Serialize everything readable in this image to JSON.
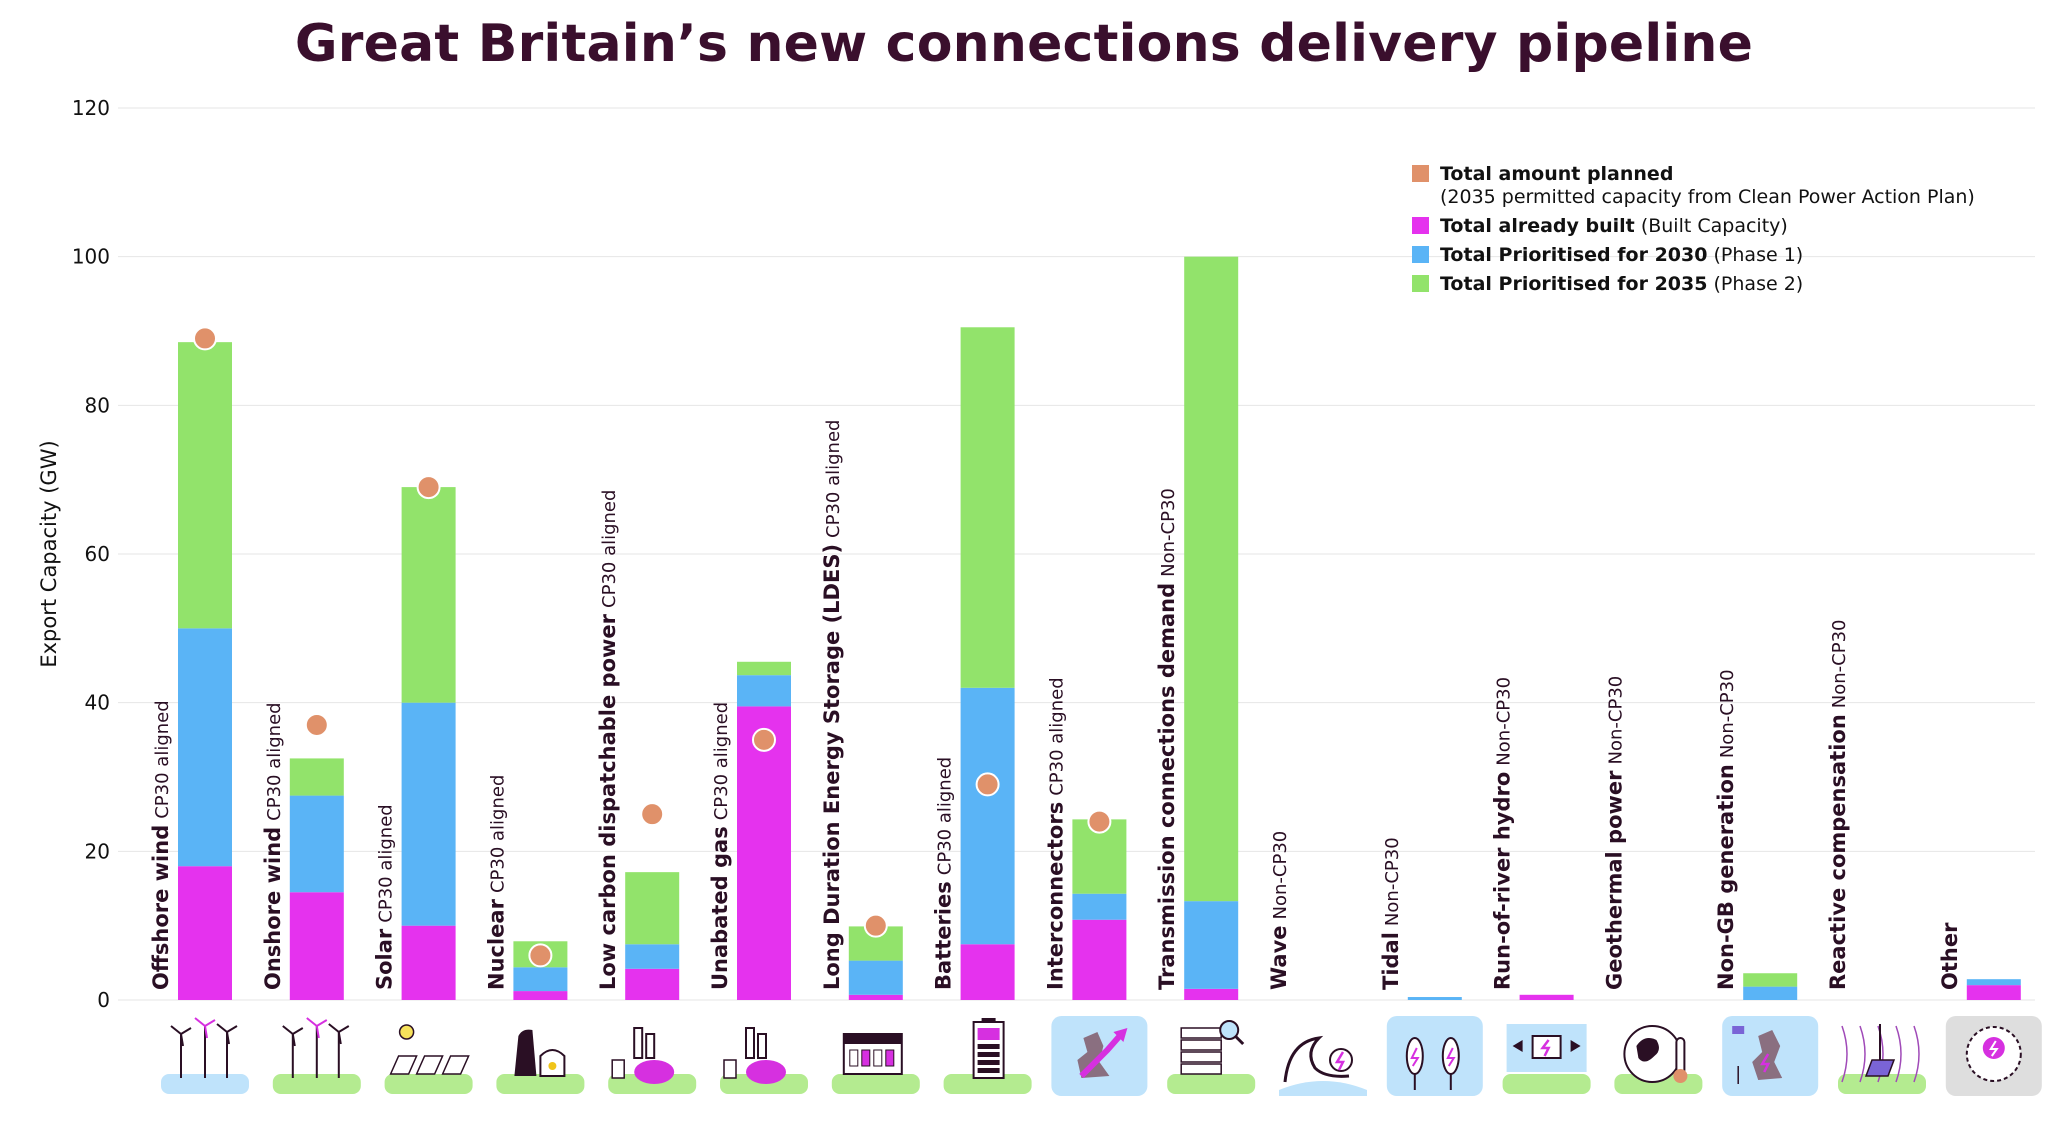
{
  "chart_data": {
    "type": "bar",
    "title": "Great Britain’s new connections delivery pipeline",
    "ylabel": "Export Capacity (GW)",
    "xlabel": "",
    "ylim": [
      0,
      120
    ],
    "yticks": [
      0,
      20,
      40,
      60,
      80,
      100,
      120
    ],
    "grid": true,
    "legend_position": "top-right",
    "categories": [
      {
        "name": "Offshore wind",
        "note": "CP30 aligned",
        "icon": "offshore-wind-turbines-icon"
      },
      {
        "name": "Onshore wind",
        "note": "CP30 aligned",
        "icon": "onshore-wind-turbines-icon"
      },
      {
        "name": "Solar",
        "note": "CP30 aligned",
        "icon": "solar-panels-icon"
      },
      {
        "name": "Nuclear",
        "note": "CP30 aligned",
        "icon": "nuclear-plant-icon"
      },
      {
        "name": "Low carbon dispatchable power",
        "note": "CP30 aligned",
        "icon": "hydrogen-plant-icon"
      },
      {
        "name": "Unabated gas",
        "note": "CP30 aligned",
        "icon": "gas-plant-icon"
      },
      {
        "name": "Long Duration Energy Storage (LDES)",
        "note": "CP30 aligned",
        "icon": "energy-storage-icon"
      },
      {
        "name": "Batteries",
        "note": "CP30 aligned",
        "icon": "battery-icon"
      },
      {
        "name": "Interconnectors",
        "note": "CP30 aligned",
        "icon": "interconnector-map-icon"
      },
      {
        "name": "Transmission connections demand",
        "note": "Non-CP30",
        "icon": "data-centre-server-icon"
      },
      {
        "name": "Wave",
        "note": "Non-CP30",
        "icon": "wave-energy-icon"
      },
      {
        "name": "Tidal",
        "note": "Non-CP30",
        "icon": "tidal-turbine-icon"
      },
      {
        "name": "Run-of-river hydro",
        "note": "Non-CP30",
        "icon": "hydro-turbine-icon"
      },
      {
        "name": "Geothermal power",
        "note": "Non-CP30",
        "icon": "geothermal-globe-icon"
      },
      {
        "name": "Non-GB generation",
        "note": "Non-CP30",
        "icon": "non-gb-map-icon"
      },
      {
        "name": "Reactive compensation",
        "note": "Non-CP30",
        "icon": "reactive-compensation-icon"
      },
      {
        "name": "Other",
        "note": "",
        "icon": "other-energy-icon"
      }
    ],
    "series": [
      {
        "name": "Total already built",
        "color": "#e532ee",
        "values": [
          18,
          14.5,
          10,
          1.2,
          4.2,
          39.5,
          0.7,
          7.5,
          10.8,
          1.5,
          0,
          0,
          0.7,
          0,
          0,
          0,
          2
        ]
      },
      {
        "name": "Total Prioritised for 2030",
        "color": "#5ab4f6",
        "values": [
          32,
          13,
          30,
          3.2,
          3.3,
          4.2,
          4.6,
          34.5,
          3.5,
          11.8,
          0,
          0.4,
          0,
          0,
          1.8,
          0,
          0.8
        ]
      },
      {
        "name": "Total Prioritised for 2035",
        "color": "#92e36b",
        "values": [
          38.5,
          5,
          29,
          3.5,
          9.7,
          1.8,
          4.6,
          48.5,
          10,
          86.7,
          0,
          0,
          0,
          0,
          1.8,
          0,
          0
        ]
      }
    ],
    "planned": {
      "name": "Total amount planned",
      "color": "#e0916a",
      "values": [
        89,
        37,
        69,
        6,
        25,
        35,
        10,
        29,
        24,
        null,
        null,
        null,
        null,
        null,
        null,
        null,
        null
      ]
    },
    "legend": [
      {
        "bold": "Total amount planned",
        "rest": "",
        "sub": "(2035 permitted capacity from Clean Power Action Plan)",
        "color": "#e0916a"
      },
      {
        "bold": "Total already built",
        "rest": " (Built Capacity)",
        "sub": "",
        "color": "#e532ee"
      },
      {
        "bold": "Total Prioritised for 2030",
        "rest": " (Phase 1)",
        "sub": "",
        "color": "#5ab4f6"
      },
      {
        "bold": "Total Prioritised for 2035",
        "rest": " (Phase 2)",
        "sub": "",
        "color": "#92e36b"
      }
    ],
    "icon_bg_color": "#b4eb90",
    "icon_bg_alt_color": "#bfe3fb",
    "icon_bg_other_color": "#dedede"
  }
}
